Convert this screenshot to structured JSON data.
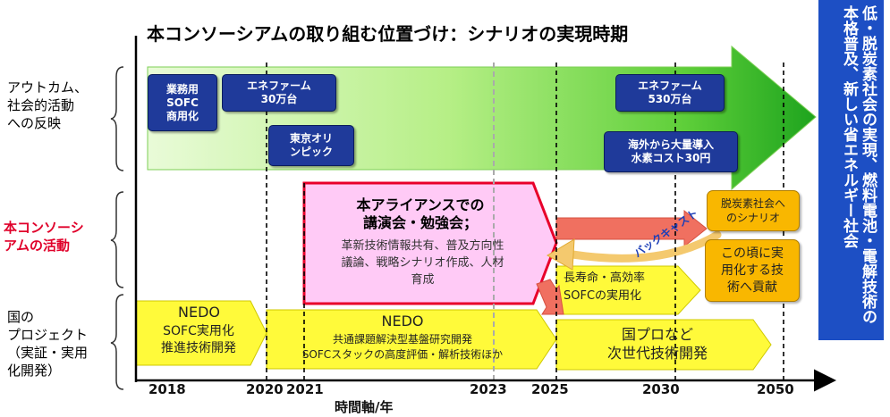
{
  "title": "本コンソーシアムの取り組む位置づけ：シナリオの実現時期",
  "row_labels": {
    "outcome": "アウトカム、\n社会的活動\nへの反映",
    "consortium": "本コンソーシ\nアムの活動",
    "national": "国の\nプロジェクト\n（実証・実用\n化開発）"
  },
  "outcome_boxes": {
    "sofc_business": "業務用\nSOFC\n商用化",
    "enefarm_300k": "エネファーム\n30万台",
    "tokyo_olympics": "東京オリ\nンピック",
    "enefarm_5300k": "エネファーム\n530万台",
    "hydrogen_import": "海外から大量導入\n水素コスト30円"
  },
  "alliance": {
    "heading": "本アライアンスでの\n講演会・勉強会；",
    "body": "革新技術情報共有、普及方向性\n議論、戦略シナリオ作成、人材\n育成"
  },
  "backcast_label": "バックキャスト",
  "decarbon_scenario": "脱炭素社会へ\nのシナリオ",
  "contribute": "この頃に実\n用化する技\n術へ貢献",
  "long_life": "長寿命・高効率\nSOFCの実用化",
  "nedo1": {
    "title": "NEDO",
    "body": "SOFC実用化\n推進技術開発"
  },
  "nedo2": {
    "title": "NEDO",
    "line1": "共通課題解決型基盤研究開発",
    "line2": "SOFCスタックの高度評価・解析技術ほか"
  },
  "next_gen": "国プロなど\n次世代技術開発",
  "right_banner": "低・脱炭素社会の実現、燃料電池・電解技術の本格普及、新しい省エネルギー社会",
  "x_axis": {
    "ticks": [
      "2018",
      "2020",
      "2021",
      "2023",
      "2025",
      "2030",
      "2050"
    ],
    "label": "時間軸/年"
  },
  "colors": {
    "navy": "#1f3a9a",
    "green_light": "#e6f9d0",
    "green_dark": "#1ea41e",
    "pink": "#ffcaf6",
    "red_border": "#e8002a",
    "yellow": "#fffa3a",
    "orange": "#f9b700",
    "banner_blue": "#1d4fc4"
  },
  "icons": [
    "brace-icon",
    "arrow-icon"
  ]
}
